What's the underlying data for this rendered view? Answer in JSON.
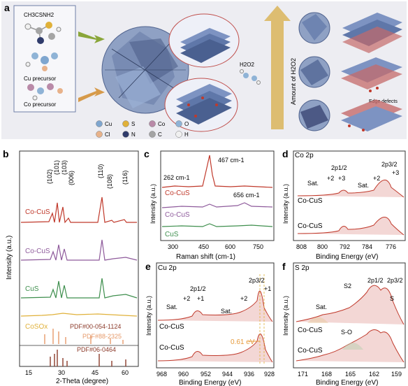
{
  "figure": {
    "panels": {
      "a": {
        "letter": "a",
        "formula": "CH3CSNH2",
        "cu_precursor": "Cu precursor",
        "co_precursor": "Co precursor",
        "h2o2": "H2O2",
        "amount_label": "Amount of H2O2",
        "edge_defects": "Edge defects",
        "legend": [
          {
            "symbol": "Cu",
            "color": "#7fa6cf"
          },
          {
            "symbol": "S",
            "color": "#e0b13a"
          },
          {
            "symbol": "Co",
            "color": "#b98aa8"
          },
          {
            "symbol": "O",
            "color": "#8fb3d6"
          },
          {
            "symbol": "Cl",
            "color": "#e8b28a"
          },
          {
            "symbol": "N",
            "color": "#2f3b6b"
          },
          {
            "symbol": "C",
            "color": "#a4a4a4"
          },
          {
            "symbol": "H",
            "color": "#f0f0f0"
          }
        ]
      },
      "b": {
        "letter": "b",
        "xlabel": "2-Theta (degree)",
        "ylabel": "Intensity (a.u.)",
        "xticks": [
          "15",
          "30",
          "45",
          "60"
        ],
        "peak_labels": [
          "(102)",
          "(101)",
          "(103)",
          "(006)",
          "(110)",
          "(108)",
          "(116)"
        ],
        "curve_labels": [
          "Co-CuS",
          "Co-CuS",
          "CuS",
          "CoSOx"
        ],
        "pdf_labels": [
          "PDF#00-054-1124",
          "PDF#88-2325",
          "PDF#06-0464"
        ]
      },
      "c": {
        "letter": "c",
        "xlabel": "Raman shift (cm-1)",
        "ylabel": "Intensity (a.u.)",
        "xticks": [
          "300",
          "450",
          "600",
          "750"
        ],
        "annotations": [
          "262 cm-1",
          "467 cm-1",
          "656 cm-1"
        ],
        "curve_labels": [
          "Co-CuS",
          "Co-CuS",
          "CuS"
        ]
      },
      "d": {
        "letter": "d",
        "title": "Co 2p",
        "xlabel": "Binding Energy (eV)",
        "ylabel": "Intensity (a.u.)",
        "xticks": [
          "808",
          "800",
          "792",
          "784",
          "776"
        ],
        "annotations": [
          "Sat.",
          "+2",
          "+3",
          "2p1/2",
          "Sat.",
          "+2",
          "2p3/2",
          "+3"
        ],
        "curve_labels": [
          "Co-CuS",
          "Co-CuS"
        ]
      },
      "e": {
        "letter": "e",
        "title": "Cu 2p",
        "xlabel": "Binding Energy (eV)",
        "ylabel": "Intensity (a.u.)",
        "xticks": [
          "968",
          "960",
          "952",
          "944",
          "936",
          "928"
        ],
        "annotations": [
          "2p1/2",
          "+2",
          "+1",
          "Sat.",
          "Sat.",
          "+2",
          "2p3/2",
          "+1",
          "0.61 eV"
        ],
        "curve_labels": [
          "Co-CuS",
          "Co-CuS"
        ]
      },
      "f": {
        "letter": "f",
        "title": "S 2p",
        "xlabel": "Binding Energy (eV)",
        "ylabel": "Intensity (a.u.)",
        "xticks": [
          "171",
          "168",
          "165",
          "162",
          "159"
        ],
        "annotations": [
          "Sat.",
          "S2",
          "2p1/2",
          "2p3/2",
          "S",
          "S-O"
        ],
        "curve_labels": [
          "Co-CuS",
          "Co-CuS"
        ]
      }
    },
    "colors": {
      "red": "#c0392b",
      "purple": "#8e5a9b",
      "green": "#3f8f4e",
      "yellow": "#e0b13a",
      "orange_pdf": "#e69a6a",
      "brown_pdf": "#8b3a2a"
    }
  }
}
